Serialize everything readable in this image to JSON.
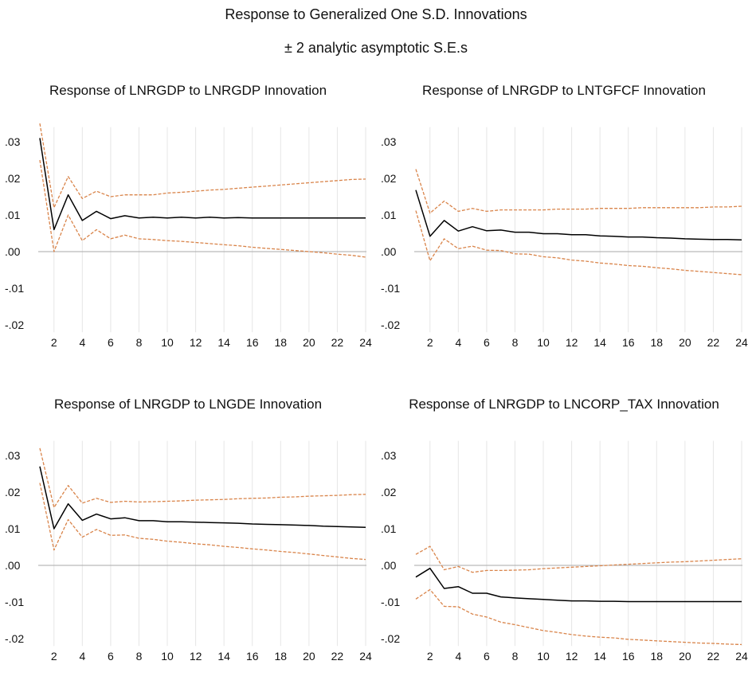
{
  "title": "Response to Generalized One S.D. Innovations",
  "subtitle": "± 2 analytic asymptotic S.E.s",
  "colors": {
    "response": "#000000",
    "bands": "#d9844a",
    "grid": "#e6e6e6",
    "zero": "#aaaaaa"
  },
  "chart_data": [
    {
      "type": "line",
      "title": "Response of LNRGDP to LNRGDP Innovation",
      "x": [
        1,
        2,
        3,
        4,
        5,
        6,
        7,
        8,
        9,
        10,
        11,
        12,
        13,
        14,
        15,
        16,
        17,
        18,
        19,
        20,
        21,
        22,
        23,
        24
      ],
      "xticks": [
        "2",
        "4",
        "6",
        "8",
        "10",
        "12",
        "14",
        "16",
        "18",
        "20",
        "22",
        "24"
      ],
      "yticks": [
        ".03",
        ".02",
        ".01",
        ".00",
        "-.01",
        "-.02"
      ],
      "ylim": [
        -0.022,
        0.034
      ],
      "grid": "vertical",
      "series": [
        {
          "role": "response",
          "values": [
            0.031,
            0.006,
            0.0155,
            0.0085,
            0.011,
            0.009,
            0.0098,
            0.0092,
            0.0094,
            0.0092,
            0.0094,
            0.0092,
            0.0094,
            0.0092,
            0.0093,
            0.0092,
            0.0092,
            0.0092,
            0.0092,
            0.0092,
            0.0092,
            0.0092,
            0.0092,
            0.0092
          ]
        },
        {
          "role": "upper",
          "values": [
            0.035,
            0.012,
            0.0205,
            0.0145,
            0.0165,
            0.015,
            0.0155,
            0.0155,
            0.0155,
            0.016,
            0.0162,
            0.0165,
            0.0168,
            0.017,
            0.0173,
            0.0176,
            0.0179,
            0.0182,
            0.0185,
            0.0188,
            0.0191,
            0.0194,
            0.0197,
            0.0198
          ]
        },
        {
          "role": "lower",
          "values": [
            0.025,
            0.0,
            0.01,
            0.003,
            0.006,
            0.0035,
            0.0045,
            0.0035,
            0.0033,
            0.003,
            0.0028,
            0.0025,
            0.0022,
            0.0019,
            0.0016,
            0.0012,
            0.0009,
            0.0006,
            0.0003,
            0.0,
            -0.0003,
            -0.0007,
            -0.001,
            -0.0015
          ]
        }
      ]
    },
    {
      "type": "line",
      "title": "Response of LNRGDP to LNTGFCF Innovation",
      "x": [
        1,
        2,
        3,
        4,
        5,
        6,
        7,
        8,
        9,
        10,
        11,
        12,
        13,
        14,
        15,
        16,
        17,
        18,
        19,
        20,
        21,
        22,
        23,
        24
      ],
      "xticks": [
        "2",
        "4",
        "6",
        "8",
        "10",
        "12",
        "14",
        "16",
        "18",
        "20",
        "22",
        "24"
      ],
      "yticks": [
        ".03",
        ".02",
        ".01",
        ".00",
        "-.01",
        "-.02"
      ],
      "ylim": [
        -0.022,
        0.034
      ],
      "grid": "vertical",
      "series": [
        {
          "role": "response",
          "values": [
            0.0168,
            0.0042,
            0.0085,
            0.0056,
            0.0068,
            0.0057,
            0.0059,
            0.0053,
            0.0053,
            0.0049,
            0.0049,
            0.0046,
            0.0046,
            0.0043,
            0.0042,
            0.004,
            0.004,
            0.0038,
            0.0037,
            0.0035,
            0.0034,
            0.0033,
            0.0033,
            0.0032
          ]
        },
        {
          "role": "upper",
          "values": [
            0.0225,
            0.0105,
            0.0138,
            0.011,
            0.0118,
            0.011,
            0.0114,
            0.0114,
            0.0114,
            0.0114,
            0.0116,
            0.0116,
            0.0116,
            0.0118,
            0.0118,
            0.0118,
            0.012,
            0.012,
            0.012,
            0.012,
            0.012,
            0.0122,
            0.0122,
            0.0124
          ]
        },
        {
          "role": "lower",
          "values": [
            0.0112,
            -0.0025,
            0.0035,
            0.0008,
            0.0015,
            0.0004,
            0.0003,
            -0.0006,
            -0.0007,
            -0.0014,
            -0.0017,
            -0.0023,
            -0.0026,
            -0.0031,
            -0.0034,
            -0.0038,
            -0.004,
            -0.0044,
            -0.0047,
            -0.0051,
            -0.0054,
            -0.0057,
            -0.006,
            -0.0063
          ]
        }
      ]
    },
    {
      "type": "line",
      "title": "Response of LNRGDP to LNGDE Innovation",
      "x": [
        1,
        2,
        3,
        4,
        5,
        6,
        7,
        8,
        9,
        10,
        11,
        12,
        13,
        14,
        15,
        16,
        17,
        18,
        19,
        20,
        21,
        22,
        23,
        24
      ],
      "xticks": [
        "2",
        "4",
        "6",
        "8",
        "10",
        "12",
        "14",
        "16",
        "18",
        "20",
        "22",
        "24"
      ],
      "yticks": [
        ".03",
        ".02",
        ".01",
        ".00",
        "-.01",
        "-.02"
      ],
      "ylim": [
        -0.022,
        0.034
      ],
      "grid": "vertical",
      "series": [
        {
          "role": "response",
          "values": [
            0.027,
            0.01,
            0.0168,
            0.0123,
            0.014,
            0.0127,
            0.013,
            0.0122,
            0.0122,
            0.0119,
            0.0119,
            0.0118,
            0.0117,
            0.0116,
            0.0115,
            0.0113,
            0.0112,
            0.0111,
            0.011,
            0.0109,
            0.0107,
            0.0106,
            0.0105,
            0.0104
          ]
        },
        {
          "role": "upper",
          "values": [
            0.032,
            0.0158,
            0.0218,
            0.017,
            0.0183,
            0.0172,
            0.0175,
            0.0173,
            0.0174,
            0.0175,
            0.0176,
            0.0178,
            0.0179,
            0.018,
            0.0182,
            0.0183,
            0.0184,
            0.0186,
            0.0187,
            0.0189,
            0.019,
            0.0191,
            0.0193,
            0.0194
          ]
        },
        {
          "role": "lower",
          "values": [
            0.0225,
            0.0042,
            0.0125,
            0.0077,
            0.0098,
            0.0082,
            0.0083,
            0.0074,
            0.0071,
            0.0066,
            0.0063,
            0.0059,
            0.0056,
            0.0052,
            0.0049,
            0.0045,
            0.0042,
            0.0038,
            0.0035,
            0.0031,
            0.0027,
            0.0023,
            0.0019,
            0.0016
          ]
        }
      ]
    },
    {
      "type": "line",
      "title": "Response of LNRGDP to LNCORP_TAX Innovation",
      "x": [
        1,
        2,
        3,
        4,
        5,
        6,
        7,
        8,
        9,
        10,
        11,
        12,
        13,
        14,
        15,
        16,
        17,
        18,
        19,
        20,
        21,
        22,
        23,
        24
      ],
      "xticks": [
        "2",
        "4",
        "6",
        "8",
        "10",
        "12",
        "14",
        "16",
        "18",
        "20",
        "22",
        "24"
      ],
      "yticks": [
        ".03",
        ".02",
        ".01",
        ".00",
        "-.01",
        "-.02"
      ],
      "ylim": [
        -0.022,
        0.034
      ],
      "grid": "vertical",
      "series": [
        {
          "role": "response",
          "values": [
            -0.0032,
            -0.0008,
            -0.0063,
            -0.0058,
            -0.0076,
            -0.0076,
            -0.0086,
            -0.0089,
            -0.0091,
            -0.0093,
            -0.0095,
            -0.0097,
            -0.0097,
            -0.0098,
            -0.0098,
            -0.0099,
            -0.0099,
            -0.0099,
            -0.0099,
            -0.0099,
            -0.0099,
            -0.0099,
            -0.0099,
            -0.0099
          ]
        },
        {
          "role": "upper",
          "values": [
            0.003,
            0.0052,
            -0.0012,
            -0.0003,
            -0.0019,
            -0.0014,
            -0.0014,
            -0.0013,
            -0.0012,
            -0.0009,
            -0.0007,
            -0.0005,
            -0.0003,
            -0.0001,
            0.0001,
            0.0003,
            0.0005,
            0.0007,
            0.0009,
            0.001,
            0.0012,
            0.0014,
            0.0016,
            0.0018
          ]
        },
        {
          "role": "lower",
          "values": [
            -0.0092,
            -0.0066,
            -0.0112,
            -0.0113,
            -0.0133,
            -0.0141,
            -0.0155,
            -0.0162,
            -0.017,
            -0.0178,
            -0.0183,
            -0.0189,
            -0.0193,
            -0.0196,
            -0.0198,
            -0.0202,
            -0.0204,
            -0.0206,
            -0.0208,
            -0.021,
            -0.0212,
            -0.0213,
            -0.0215,
            -0.0216
          ]
        }
      ]
    }
  ]
}
